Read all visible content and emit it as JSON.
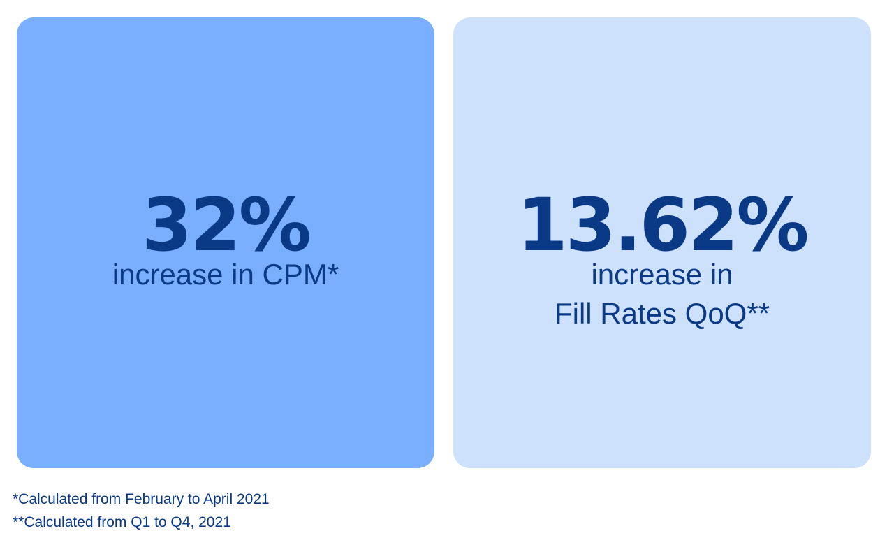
{
  "cards": [
    {
      "value": "32%",
      "caption_lines": [
        "increase in CPM*"
      ],
      "background": "#7aafff"
    },
    {
      "value": "13.62%",
      "caption_lines": [
        "increase in",
        "Fill Rates QoQ**"
      ],
      "background": "#cde1fc"
    }
  ],
  "footnotes": [
    "*Calculated from February to April 2021",
    "**Calculated from Q1 to Q4, 2021"
  ],
  "colors": {
    "text": "#0a3a86",
    "page_background": "#ffffff"
  }
}
